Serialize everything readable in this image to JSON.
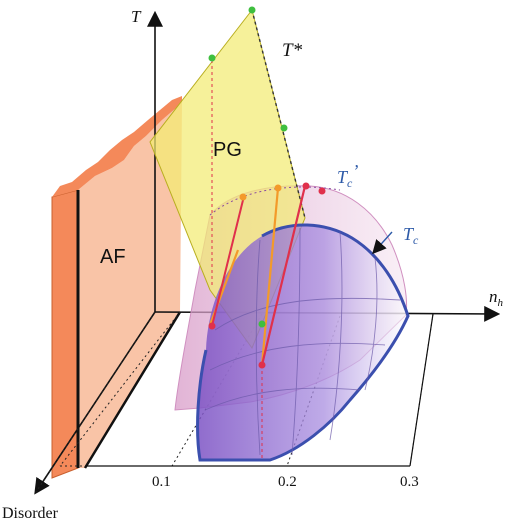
{
  "diagram": {
    "axes": {
      "temperature": "T",
      "doping": "n",
      "doping_subscript": "h",
      "disorder": "Disorder"
    },
    "ticks": [
      "0.1",
      "0.2",
      "0.3"
    ],
    "regions": {
      "antiferromagnet": "AF",
      "pseudogap": "PG"
    },
    "curves": {
      "pseudogap_temperature": "T*",
      "tc_base": "T",
      "tc_prime_sub": "c",
      "tc_prime_mark": "’",
      "tc_sub": "c"
    },
    "colors": {
      "af_front": "#f4895a",
      "af_face": "#f9c4a7",
      "pg_plane": "#f3ec73",
      "tc_prime_surface": "#e7b0d6",
      "tc_surface": "#9b78d6",
      "tc_outline": "#3b4fae",
      "marker_green": "#3fbf3f",
      "marker_red": "#e0304b",
      "marker_orange": "#f39a2a"
    }
  }
}
